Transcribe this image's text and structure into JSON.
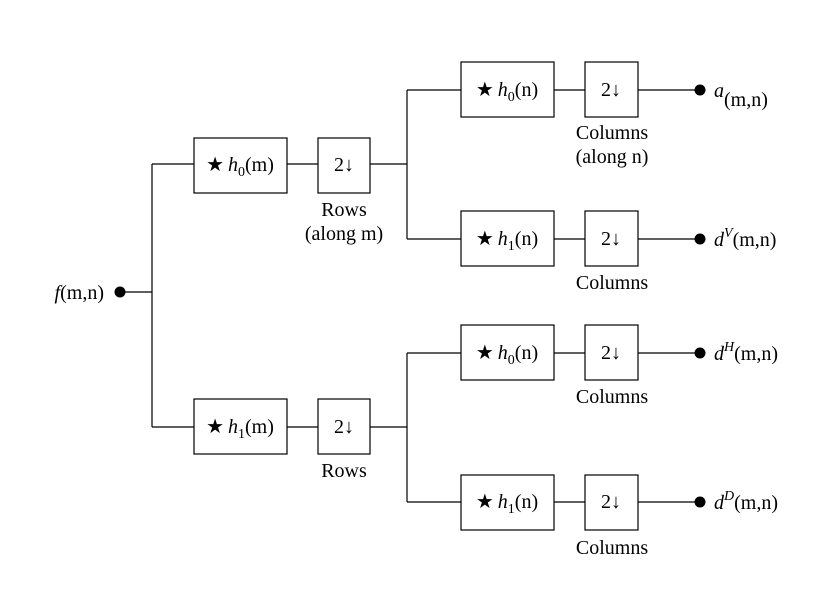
{
  "input": {
    "name": "f",
    "args": "(m,n)"
  },
  "stage1": [
    {
      "filter_star": "★",
      "filter_sym": "h",
      "filter_sub": "0",
      "filter_arg": "(m)",
      "down": "2↓",
      "caption": [
        "Rows",
        "(along m)"
      ]
    },
    {
      "filter_star": "★",
      "filter_sym": "h",
      "filter_sub": "1",
      "filter_arg": "(m)",
      "down": "2↓",
      "caption": [
        "Rows"
      ]
    }
  ],
  "stage2": [
    {
      "filter_star": "★",
      "filter_sym": "h",
      "filter_sub": "0",
      "filter_arg": "(n)",
      "down": "2↓",
      "caption": [
        "Columns",
        "(along n)"
      ],
      "output": {
        "name": "a",
        "sup": "",
        "args": "(m,n)"
      }
    },
    {
      "filter_star": "★",
      "filter_sym": "h",
      "filter_sub": "1",
      "filter_arg": "(n)",
      "down": "2↓",
      "caption": [
        "Columns"
      ],
      "output": {
        "name": "d",
        "sup": "V",
        "args": "(m,n)"
      }
    },
    {
      "filter_star": "★",
      "filter_sym": "h",
      "filter_sub": "0",
      "filter_arg": "(n)",
      "down": "2↓",
      "caption": [
        "Columns"
      ],
      "output": {
        "name": "d",
        "sup": "H",
        "args": "(m,n)"
      }
    },
    {
      "filter_star": "★",
      "filter_sym": "h",
      "filter_sub": "1",
      "filter_arg": "(n)",
      "down": "2↓",
      "caption": [
        "Columns"
      ],
      "output": {
        "name": "d",
        "sup": "D",
        "args": "(m,n)"
      }
    }
  ]
}
